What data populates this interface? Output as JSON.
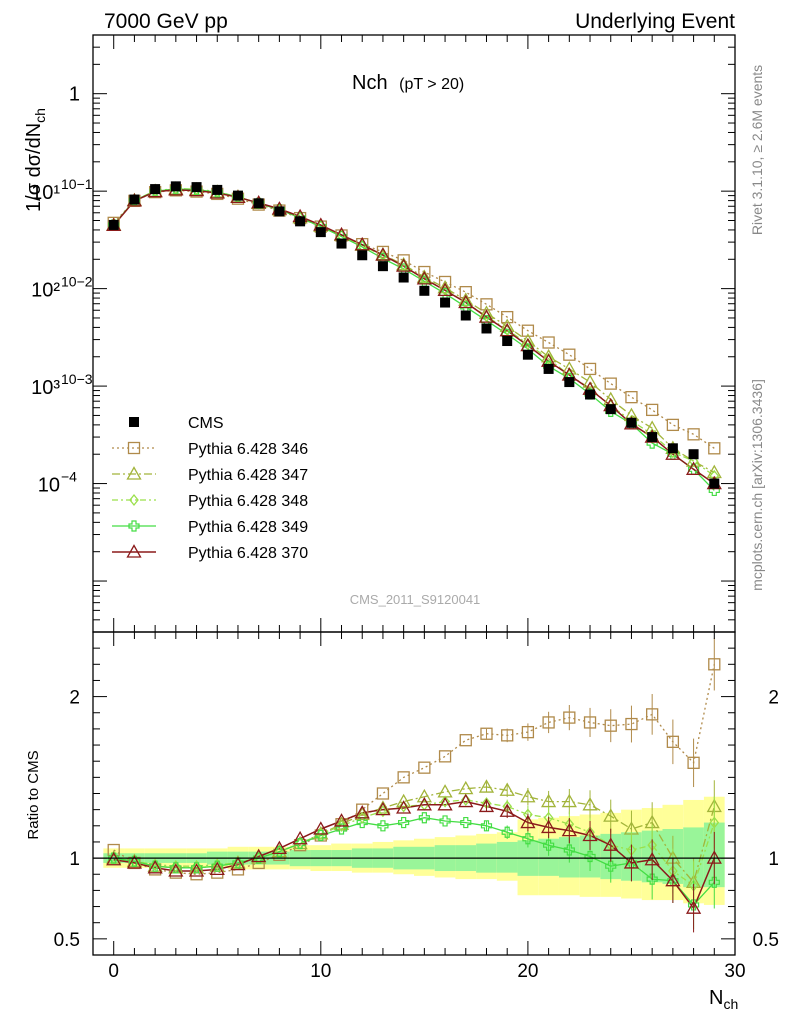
{
  "header": {
    "left": "7000 GeV pp",
    "right": "Underlying Event"
  },
  "side_labels": {
    "rivet": "Rivet 3.1.10, ≥ 2.6M events",
    "mcplots": "mcplots.cern.ch [arXiv:1306.3436]"
  },
  "chart_data": {
    "type": "scatter",
    "title_main": "Nch",
    "title_sub": "(pT > 20)",
    "watermark": "CMS_2011_S9120041",
    "xlabel_main": "N",
    "xlabel_sub": "ch",
    "ylabel": "1/σ dσ/dN",
    "ylabel_sub": "ch",
    "ratio_ylabel": "Ratio to CMS",
    "xlim": [
      -1,
      30
    ],
    "ylim": [
      3e-06,
      4
    ],
    "yscale": "log",
    "ratio_ylim": [
      0.4,
      2.4
    ],
    "x_ticks": [
      "0",
      "10",
      "20",
      "30"
    ],
    "y_ticks": [
      "10⁻⁴",
      "10⁻³",
      "10⁻²",
      "10⁻¹",
      "1"
    ],
    "ratio_ticks": [
      "0.5",
      "1",
      "2"
    ],
    "legend_position": "lower-left",
    "x": [
      0,
      1,
      2,
      3,
      4,
      5,
      6,
      7,
      8,
      9,
      10,
      11,
      12,
      13,
      14,
      15,
      16,
      17,
      18,
      19,
      20,
      21,
      22,
      23,
      24,
      25,
      26,
      27,
      28,
      29
    ],
    "data": {
      "name": "CMS",
      "values": [
        0.045,
        0.082,
        0.105,
        0.112,
        0.11,
        0.103,
        0.09,
        0.075,
        0.062,
        0.049,
        0.038,
        0.029,
        0.022,
        0.017,
        0.013,
        0.0095,
        0.0072,
        0.0053,
        0.0039,
        0.0029,
        0.0021,
        0.0015,
        0.0011,
        0.00082,
        0.00058,
        0.00042,
        0.0003,
        0.00023,
        0.0002,
        0.0001
      ]
    },
    "bands": {
      "outer_lo": [
        0.94,
        0.94,
        0.94,
        0.94,
        0.94,
        0.94,
        0.93,
        0.93,
        0.93,
        0.93,
        0.92,
        0.92,
        0.91,
        0.91,
        0.9,
        0.89,
        0.88,
        0.87,
        0.87,
        0.86,
        0.77,
        0.77,
        0.77,
        0.76,
        0.76,
        0.75,
        0.74,
        0.74,
        0.72,
        0.71
      ],
      "outer_hi": [
        1.06,
        1.06,
        1.06,
        1.06,
        1.06,
        1.06,
        1.07,
        1.07,
        1.07,
        1.08,
        1.08,
        1.09,
        1.09,
        1.1,
        1.11,
        1.12,
        1.13,
        1.14,
        1.15,
        1.16,
        1.24,
        1.25,
        1.26,
        1.27,
        1.28,
        1.3,
        1.31,
        1.33,
        1.36,
        1.38
      ],
      "inner_lo": [
        0.97,
        0.97,
        0.97,
        0.97,
        0.97,
        0.96,
        0.96,
        0.96,
        0.96,
        0.95,
        0.95,
        0.95,
        0.94,
        0.94,
        0.93,
        0.93,
        0.92,
        0.92,
        0.91,
        0.91,
        0.89,
        0.89,
        0.88,
        0.88,
        0.87,
        0.86,
        0.85,
        0.84,
        0.82,
        0.82
      ],
      "inner_hi": [
        1.03,
        1.03,
        1.03,
        1.03,
        1.03,
        1.04,
        1.04,
        1.04,
        1.04,
        1.05,
        1.05,
        1.05,
        1.06,
        1.06,
        1.07,
        1.07,
        1.08,
        1.08,
        1.09,
        1.1,
        1.11,
        1.12,
        1.13,
        1.14,
        1.15,
        1.16,
        1.17,
        1.18,
        1.19,
        1.22
      ]
    },
    "series": [
      {
        "name": "Pythia 6.428 346",
        "color": "#b08a4a",
        "dash": "2,3",
        "marker": "square",
        "ratio": [
          1.05,
          0.97,
          0.93,
          0.91,
          0.9,
          0.91,
          0.93,
          0.97,
          1.02,
          1.08,
          1.14,
          1.21,
          1.3,
          1.4,
          1.5,
          1.56,
          1.63,
          1.73,
          1.77,
          1.76,
          1.78,
          1.84,
          1.87,
          1.84,
          1.82,
          1.83,
          1.89,
          1.72,
          1.59,
          2.2
        ],
        "values": [
          0.0473,
          0.0795,
          0.0977,
          0.1019,
          0.099,
          0.0937,
          0.0837,
          0.0728,
          0.0632,
          0.0529,
          0.0433,
          0.0351,
          0.0286,
          0.0238,
          0.0195,
          0.0148,
          0.0117,
          0.0092,
          0.0069,
          0.0051,
          0.0037,
          0.0028,
          0.0021,
          0.0015,
          0.00106,
          0.00077,
          0.00057,
          0.0004,
          0.00032,
          0.00023
        ]
      },
      {
        "name": "Pythia 6.428 347",
        "color": "#a2b43a",
        "dash": "8,3,2,3",
        "marker": "triangle",
        "ratio": [
          1.0,
          0.98,
          0.95,
          0.94,
          0.94,
          0.95,
          0.97,
          1.0,
          1.04,
          1.09,
          1.15,
          1.21,
          1.27,
          1.31,
          1.35,
          1.38,
          1.41,
          1.43,
          1.44,
          1.42,
          1.38,
          1.35,
          1.35,
          1.33,
          1.26,
          1.18,
          1.22,
          1.0,
          0.85,
          1.32
        ],
        "values": [
          0.045,
          0.0804,
          0.0998,
          0.1053,
          0.1034,
          0.0979,
          0.0873,
          0.075,
          0.0645,
          0.0534,
          0.0437,
          0.0351,
          0.0279,
          0.0223,
          0.0176,
          0.0131,
          0.0102,
          0.0076,
          0.0056,
          0.0041,
          0.0029,
          0.002,
          0.0015,
          0.0011,
          0.00073,
          0.0005,
          0.00037,
          0.00023,
          0.00017,
          0.00013
        ]
      },
      {
        "name": "Pythia 6.428 348",
        "color": "#9ae04a",
        "dash": "6,3,2,3",
        "marker": "diamond",
        "ratio": [
          1.0,
          0.98,
          0.96,
          0.95,
          0.95,
          0.96,
          0.97,
          1.0,
          1.04,
          1.09,
          1.15,
          1.2,
          1.25,
          1.29,
          1.32,
          1.33,
          1.35,
          1.36,
          1.34,
          1.32,
          1.27,
          1.25,
          1.21,
          1.16,
          1.08,
          1.05,
          1.08,
          0.92,
          0.83,
          1.22
        ],
        "values": [
          0.045,
          0.0804,
          0.1008,
          0.1064,
          0.1045,
          0.0989,
          0.0873,
          0.075,
          0.0645,
          0.0534,
          0.0437,
          0.0348,
          0.0275,
          0.0219,
          0.0172,
          0.0126,
          0.0097,
          0.0072,
          0.0052,
          0.0038,
          0.0027,
          0.0019,
          0.0013,
          0.00095,
          0.00063,
          0.00044,
          0.00032,
          0.00021,
          0.00017,
          0.00012
        ]
      },
      {
        "name": "Pythia 6.428 349",
        "color": "#44dd44",
        "dash": "",
        "marker": "cross",
        "ratio": [
          1.0,
          0.98,
          0.95,
          0.94,
          0.94,
          0.95,
          0.97,
          1.0,
          1.04,
          1.09,
          1.14,
          1.18,
          1.22,
          1.2,
          1.22,
          1.25,
          1.23,
          1.22,
          1.2,
          1.16,
          1.12,
          1.08,
          1.05,
          1.01,
          0.95,
          0.97,
          0.87,
          0.86,
          0.71,
          0.85
        ],
        "values": [
          0.045,
          0.0804,
          0.0998,
          0.1053,
          0.1034,
          0.0979,
          0.0873,
          0.075,
          0.0645,
          0.0534,
          0.0433,
          0.0342,
          0.0268,
          0.0204,
          0.0159,
          0.0119,
          0.0089,
          0.0065,
          0.0047,
          0.0034,
          0.0024,
          0.0016,
          0.0012,
          0.00083,
          0.00055,
          0.00041,
          0.00026,
          0.0002,
          0.00014,
          8.5e-05
        ]
      },
      {
        "name": "Pythia 6.428 370",
        "color": "#8b1a1a",
        "dash": "",
        "marker": "triangle",
        "ratio": [
          0.99,
          0.97,
          0.94,
          0.92,
          0.92,
          0.93,
          0.96,
          1.01,
          1.06,
          1.12,
          1.18,
          1.23,
          1.28,
          1.3,
          1.31,
          1.33,
          1.33,
          1.35,
          1.32,
          1.29,
          1.22,
          1.19,
          1.17,
          1.14,
          1.08,
          0.97,
          0.99,
          0.86,
          0.69,
          1.0
        ],
        "values": [
          0.0446,
          0.0795,
          0.0987,
          0.103,
          0.1012,
          0.0958,
          0.0864,
          0.0758,
          0.0657,
          0.0549,
          0.0448,
          0.0357,
          0.0282,
          0.0221,
          0.017,
          0.0126,
          0.0096,
          0.0072,
          0.0051,
          0.0037,
          0.0026,
          0.0018,
          0.0013,
          0.00093,
          0.00063,
          0.00041,
          0.0003,
          0.0002,
          0.00014,
          0.0001
        ]
      }
    ]
  }
}
